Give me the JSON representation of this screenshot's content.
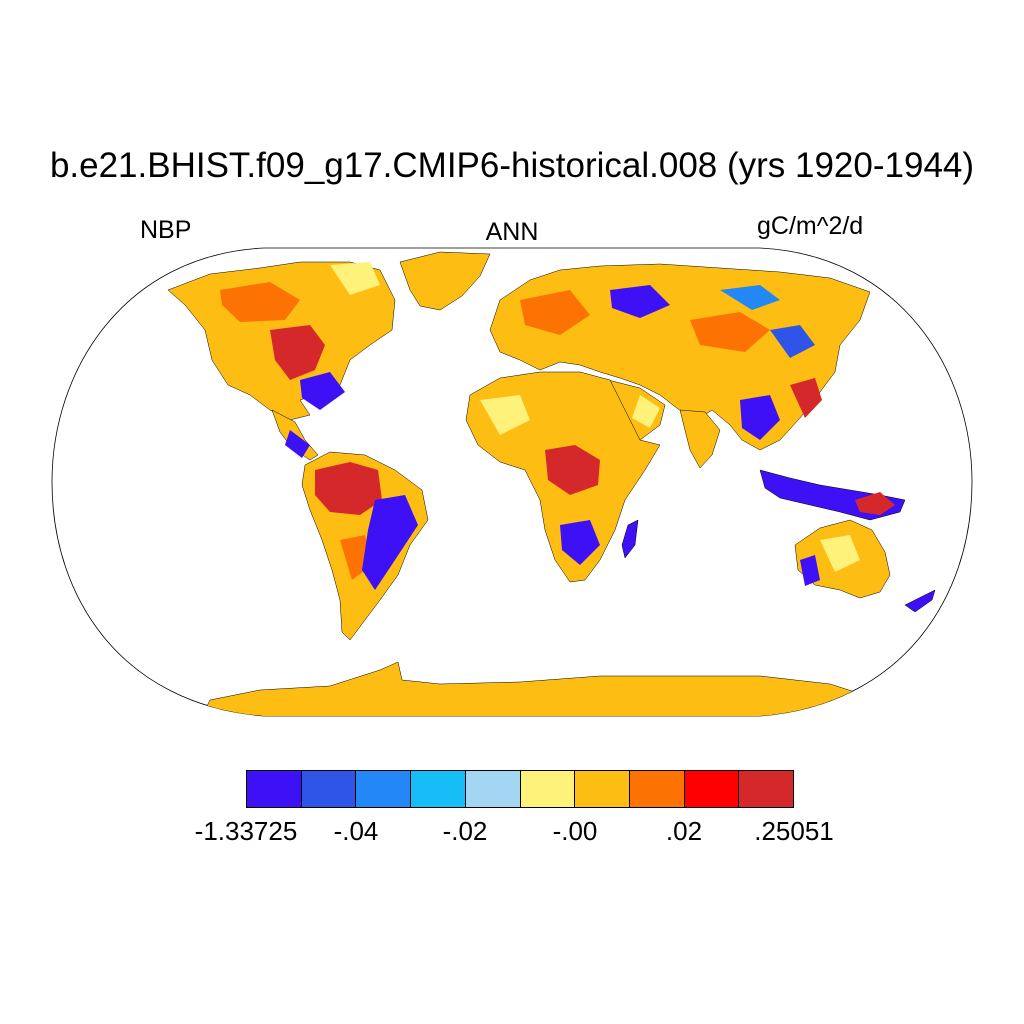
{
  "title": "b.e21.BHIST.f09_g17.CMIP6-historical.008 (yrs 1920-1944)",
  "left_label": "NBP",
  "center_label": "ANN",
  "right_label": "gC/m^2/d",
  "colorbar": {
    "colors": [
      "#3e10f5",
      "#2f55e8",
      "#2387f5",
      "#16bdf7",
      "#a3d6f2",
      "#fff27a",
      "#fdbd13",
      "#fd7303",
      "#fe0000",
      "#d4282b"
    ],
    "labels": [
      "-1.33725",
      "-.04",
      "-.02",
      "-.00",
      ".02",
      ".25051"
    ]
  },
  "legend_palette": {
    "strong_negative": "#3e10f5",
    "near_zero_low": "#fff27a",
    "near_zero": "#fdbd13",
    "positive": "#fd7303",
    "strong_positive": "#d4282b"
  }
}
